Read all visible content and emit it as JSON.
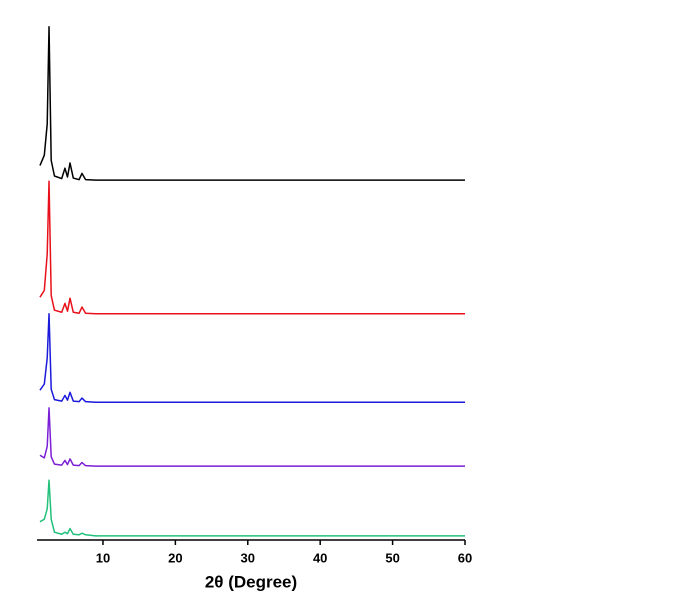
{
  "chart_data": {
    "type": "line",
    "x_label": "2θ (Degree)",
    "x": [
      1.3,
      1.9,
      2.3,
      2.55,
      2.85,
      3.3,
      4.3,
      4.75,
      5.1,
      5.45,
      5.9,
      6.7,
      7.1,
      7.6,
      9,
      60
    ],
    "series": [
      {
        "color": "#000000",
        "values": [
          72,
          74,
          80,
          98.7,
          73,
          70,
          69.5,
          71.5,
          69.8,
          72.5,
          69.6,
          69.3,
          70.5,
          69.3,
          69.2,
          69.2
        ]
      },
      {
        "color": "#e8101a",
        "values": [
          46.7,
          48,
          55,
          69,
          47,
          44.2,
          43.8,
          45.5,
          44,
          46.5,
          43.8,
          43.6,
          44.8,
          43.6,
          43.5,
          43.5
        ]
      },
      {
        "color": "#1a1adb",
        "values": [
          28.8,
          30,
          35,
          43.5,
          29,
          27,
          26.7,
          27.8,
          26.9,
          28.4,
          26.7,
          26.6,
          27.3,
          26.6,
          26.5,
          26.5
        ]
      },
      {
        "color": "#7a1fd6",
        "values": [
          16.3,
          15.8,
          18,
          25.4,
          16,
          14.6,
          14.4,
          15.3,
          14.5,
          15.6,
          14.4,
          14.3,
          14.9,
          14.3,
          14.2,
          14.2
        ]
      },
      {
        "color": "#22c07a",
        "values": [
          3.5,
          4,
          6,
          11.5,
          4,
          1.5,
          1.1,
          1.5,
          1.2,
          2.2,
          1.1,
          1,
          1.3,
          1,
          0.8,
          0.8
        ]
      }
    ],
    "xlim": [
      1,
      60
    ],
    "xticks": [
      10,
      20,
      30,
      40,
      50,
      60
    ],
    "ylim": [
      0,
      100
    ]
  }
}
